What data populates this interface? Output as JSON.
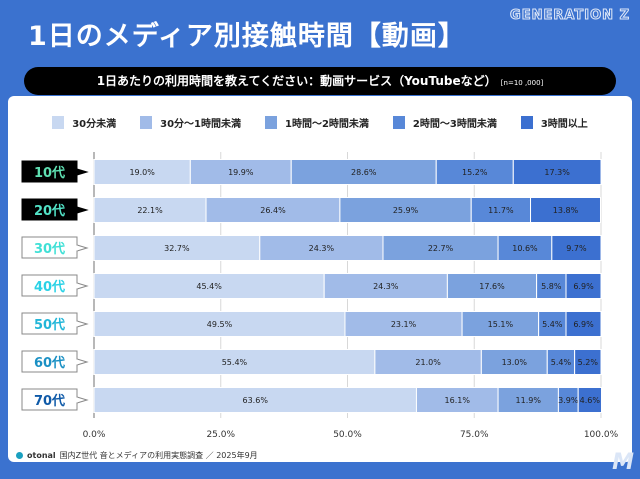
{
  "header": {
    "title": "1日のメディア別接触時間【動画】",
    "brand": "GENERATION Z"
  },
  "question": {
    "text": "1日あたりの利用時間を教えてください：動画サービス（YouTubeなど）",
    "n": "[n=10 ,000]"
  },
  "footer": {
    "logo": "otonal",
    "source": "国内Z世代 音とメディアの利用実態調査 ／ 2025年9月"
  },
  "chart_data": {
    "type": "bar",
    "orientation": "horizontal-stacked-100",
    "categories": [
      "10代",
      "20代",
      "30代",
      "40代",
      "50代",
      "60代",
      "70代"
    ],
    "category_colors": [
      "#5fe0b2",
      "#52e2c6",
      "#3fe0d6",
      "#2ad2e6",
      "#22b6d8",
      "#1a90c4",
      "#0f5aa8"
    ],
    "series": [
      {
        "name": "30分未満",
        "color": "#c8d8f1",
        "values": [
          19.0,
          22.1,
          32.7,
          45.4,
          49.5,
          55.4,
          63.6
        ]
      },
      {
        "name": "30分〜1時間未満",
        "color": "#a1bbe8",
        "values": [
          19.9,
          26.4,
          24.3,
          24.3,
          23.1,
          21.0,
          16.1
        ]
      },
      {
        "name": "1時間〜2時間未満",
        "color": "#7ba2de",
        "values": [
          28.6,
          25.9,
          22.7,
          17.6,
          15.1,
          13.0,
          11.9
        ]
      },
      {
        "name": "2時間〜3時間未満",
        "color": "#5888d8",
        "values": [
          15.2,
          11.7,
          10.6,
          5.8,
          5.4,
          5.4,
          3.9
        ]
      },
      {
        "name": "3時間以上",
        "color": "#3c70d0",
        "values": [
          17.3,
          13.8,
          9.7,
          6.9,
          6.9,
          5.2,
          4.6
        ]
      }
    ],
    "xlim": [
      0,
      100
    ],
    "xticks": [
      "0.0%",
      "25.0%",
      "50.0%",
      "75.0%",
      "100.0%"
    ],
    "grid": true,
    "legend": "top"
  }
}
